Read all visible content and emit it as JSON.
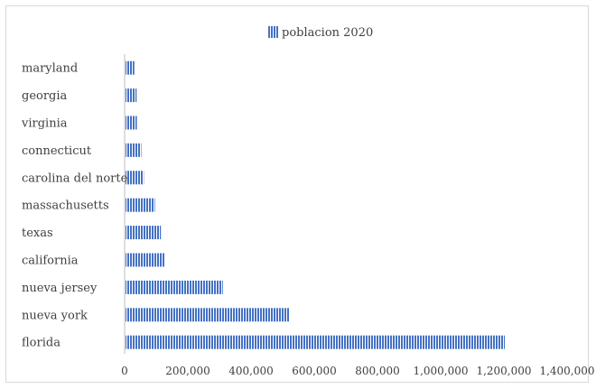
{
  "chart_data": {
    "type": "bar",
    "orientation": "horizontal",
    "title": "",
    "xlabel": "",
    "ylabel": "",
    "categories": [
      "maryland",
      "georgia",
      "virginia",
      "connecticut",
      "carolina del norte",
      "massachusetts",
      "texas",
      "california",
      "nueva jersey",
      "nueva york",
      "florida"
    ],
    "series": [
      {
        "name": "poblacion 2020",
        "values": [
          28000,
          35000,
          36000,
          50000,
          58000,
          93000,
          112000,
          125000,
          308000,
          520000,
          1200000
        ],
        "color": "#4472c4",
        "pattern": "vertical-stripes"
      }
    ],
    "xlim": [
      0,
      1400000
    ],
    "x_ticks": [
      "0",
      "200,000",
      "400,000",
      "600,000",
      "800,000",
      "1,000,000",
      "1,200,000",
      "1,400,000"
    ],
    "legend": {
      "position": "top",
      "label": "poblacion 2020"
    },
    "grid": false
  }
}
